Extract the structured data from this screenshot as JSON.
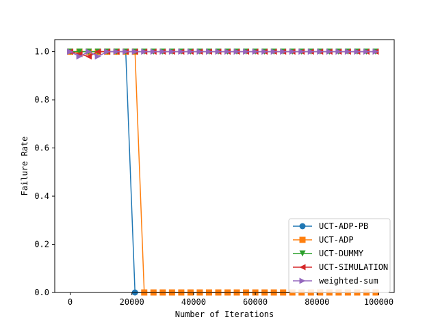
{
  "chart_data": {
    "type": "line",
    "xlabel": "Number of Iterations",
    "ylabel": "Failure Rate",
    "xlim": [
      -5000,
      105000
    ],
    "ylim": [
      0.0,
      1.05
    ],
    "xticks": [
      0,
      20000,
      40000,
      60000,
      80000,
      100000
    ],
    "xtick_labels": [
      "0",
      "20000",
      "40000",
      "60000",
      "80000",
      "100000"
    ],
    "yticks": [
      0.0,
      0.2,
      0.4,
      0.6,
      0.8,
      1.0
    ],
    "ytick_labels": [
      "0.0",
      "0.2",
      "0.4",
      "0.6",
      "0.8",
      "1.0"
    ],
    "grid": false,
    "legend_position": "bottom-right",
    "series": [
      {
        "name": "UCT-ADP-PB",
        "color": "#1f77b4",
        "marker": "circle",
        "x": [
          0,
          3000,
          6000,
          9000,
          12000,
          15000,
          18000,
          21000,
          24000,
          27000,
          30000,
          33000,
          36000,
          39000,
          42000,
          45000,
          48000,
          51000,
          54000,
          57000,
          60000,
          63000,
          66000,
          69000,
          72000,
          75000,
          78000,
          81000,
          84000,
          87000,
          90000,
          93000,
          96000,
          99000
        ],
        "y": [
          1,
          1,
          1,
          1,
          1,
          1,
          1,
          0,
          0,
          0,
          0,
          0,
          0,
          0,
          0,
          0,
          0,
          0,
          0,
          0,
          0,
          0,
          0,
          0,
          0,
          0,
          0,
          0,
          0,
          0,
          0,
          0,
          0,
          0
        ]
      },
      {
        "name": "UCT-ADP",
        "color": "#ff7f0e",
        "marker": "square",
        "x": [
          0,
          3000,
          6000,
          9000,
          12000,
          15000,
          18000,
          21000,
          24000,
          27000,
          30000,
          33000,
          36000,
          39000,
          42000,
          45000,
          48000,
          51000,
          54000,
          57000,
          60000,
          63000,
          66000,
          69000,
          72000,
          75000,
          78000,
          81000,
          84000,
          87000,
          90000,
          93000,
          96000,
          99000
        ],
        "y": [
          1,
          1,
          1,
          1,
          1,
          1,
          1,
          1,
          0,
          0,
          0,
          0,
          0,
          0,
          0,
          0,
          0,
          0,
          0,
          0,
          0,
          0,
          0,
          0,
          0,
          0,
          0,
          0,
          0,
          0,
          0,
          0,
          0,
          0
        ]
      },
      {
        "name": "UCT-DUMMY",
        "color": "#2ca02c",
        "marker": "triangle-down",
        "x": [
          0,
          3000,
          6000,
          9000,
          12000,
          15000,
          18000,
          21000,
          24000,
          27000,
          30000,
          33000,
          36000,
          39000,
          42000,
          45000,
          48000,
          51000,
          54000,
          57000,
          60000,
          63000,
          66000,
          69000,
          72000,
          75000,
          78000,
          81000,
          84000,
          87000,
          90000,
          93000,
          96000,
          99000
        ],
        "y": [
          1,
          1,
          1,
          1,
          1,
          1,
          1,
          1,
          1,
          1,
          1,
          1,
          1,
          1,
          1,
          1,
          1,
          1,
          1,
          1,
          1,
          1,
          1,
          1,
          1,
          1,
          1,
          1,
          1,
          1,
          1,
          1,
          1,
          1
        ]
      },
      {
        "name": "UCT-SIMULATION",
        "color": "#d62728",
        "marker": "triangle-left",
        "x": [
          0,
          3000,
          6000,
          9000,
          12000,
          15000,
          18000,
          21000,
          24000,
          27000,
          30000,
          33000,
          36000,
          39000,
          42000,
          45000,
          48000,
          51000,
          54000,
          57000,
          60000,
          63000,
          66000,
          69000,
          72000,
          75000,
          78000,
          81000,
          84000,
          87000,
          90000,
          93000,
          96000,
          99000
        ],
        "y": [
          1,
          0.99,
          0.98,
          1,
          1,
          1,
          1,
          1,
          1,
          1,
          1,
          1,
          1,
          1,
          1,
          1,
          1,
          1,
          1,
          1,
          1,
          1,
          1,
          1,
          1,
          1,
          1,
          1,
          1,
          1,
          1,
          1,
          1,
          1
        ]
      },
      {
        "name": "weighted-sum",
        "color": "#9467bd",
        "marker": "triangle-right",
        "x": [
          0,
          3000,
          6000,
          9000,
          12000,
          15000,
          18000,
          21000,
          24000,
          27000,
          30000,
          33000,
          36000,
          39000,
          42000,
          45000,
          48000,
          51000,
          54000,
          57000,
          60000,
          63000,
          66000,
          69000,
          72000,
          75000,
          78000,
          81000,
          84000,
          87000,
          90000,
          93000,
          96000,
          99000
        ],
        "y": [
          1,
          0.98,
          1,
          0.98,
          1,
          1,
          1,
          1,
          1,
          1,
          1,
          1,
          1,
          1,
          1,
          1,
          1,
          1,
          1,
          1,
          1,
          1,
          1,
          1,
          1,
          1,
          1,
          1,
          1,
          1,
          1,
          1,
          1,
          1
        ]
      }
    ]
  }
}
